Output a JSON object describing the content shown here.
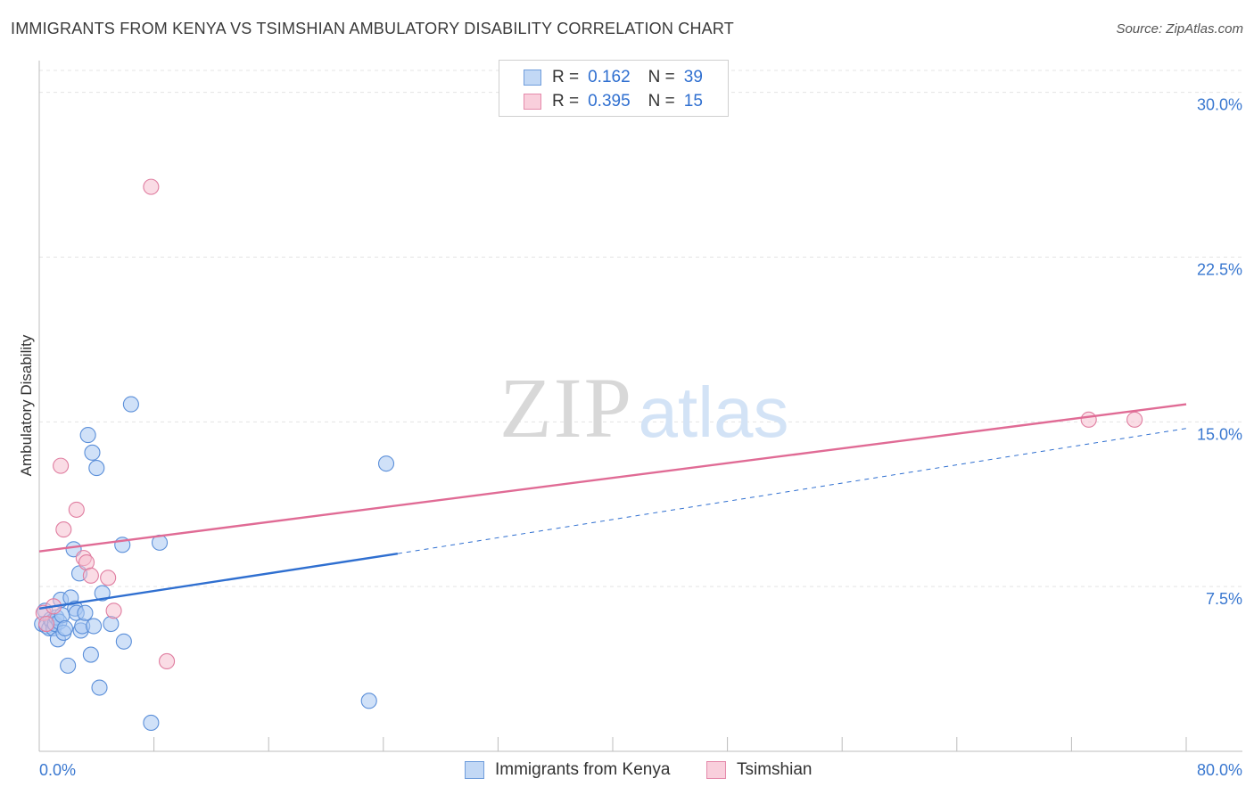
{
  "title": "IMMIGRANTS FROM KENYA VS TSIMSHIAN AMBULATORY DISABILITY CORRELATION CHART",
  "source": "Source: ZipAtlas.com",
  "watermark": {
    "zip": "ZIP",
    "atlas": "atlas"
  },
  "legend": {
    "r_label": "R =",
    "n_label": "N =",
    "rows": [
      {
        "r": "0.162",
        "n": "39",
        "color": "#a9c9f2",
        "border": "#5b8fd9"
      },
      {
        "r": "0.395",
        "n": "15",
        "color": "#f6bfd0",
        "border": "#e07da0"
      }
    ]
  },
  "chart_data": {
    "type": "scatter",
    "title": "IMMIGRANTS FROM KENYA VS TSIMSHIAN AMBULATORY DISABILITY CORRELATION CHART",
    "xlabel": "",
    "ylabel": "Ambulatory Disability",
    "xlim": [
      0,
      80
    ],
    "ylim": [
      0,
      31
    ],
    "x_tick_labels": [
      "0.0%",
      "80.0%"
    ],
    "y_ticks": [
      7.5,
      15.0,
      22.5,
      30.0
    ],
    "y_tick_labels": [
      "7.5%",
      "15.0%",
      "22.5%",
      "30.0%"
    ],
    "grid": true,
    "series": [
      {
        "name": "Immigrants from Kenya",
        "color": "#5b8fd9",
        "fill": "#a9c9f2",
        "line_color": "#2f6fd0",
        "trend": {
          "x0": 0,
          "y0": 6.5,
          "x1": 25,
          "y1": 9.0,
          "dashed_to": 80,
          "dashed_y": 14.7
        },
        "points": [
          [
            0.2,
            5.8
          ],
          [
            0.4,
            6.4
          ],
          [
            0.5,
            5.7
          ],
          [
            0.7,
            5.6
          ],
          [
            0.8,
            6.0
          ],
          [
            0.9,
            5.9
          ],
          [
            1.0,
            5.6
          ],
          [
            1.1,
            5.8
          ],
          [
            1.2,
            6.1
          ],
          [
            1.3,
            5.1
          ],
          [
            1.4,
            5.9
          ],
          [
            1.5,
            6.9
          ],
          [
            1.6,
            6.2
          ],
          [
            1.7,
            5.4
          ],
          [
            1.8,
            5.6
          ],
          [
            2.0,
            3.9
          ],
          [
            2.2,
            7.0
          ],
          [
            2.4,
            9.2
          ],
          [
            2.5,
            6.5
          ],
          [
            2.6,
            6.3
          ],
          [
            2.8,
            8.1
          ],
          [
            2.9,
            5.5
          ],
          [
            3.0,
            5.7
          ],
          [
            3.2,
            6.3
          ],
          [
            3.4,
            14.4
          ],
          [
            3.6,
            4.4
          ],
          [
            3.7,
            13.6
          ],
          [
            3.8,
            5.7
          ],
          [
            4.0,
            12.9
          ],
          [
            4.2,
            2.9
          ],
          [
            4.4,
            7.2
          ],
          [
            5.0,
            5.8
          ],
          [
            5.8,
            9.4
          ],
          [
            5.9,
            5.0
          ],
          [
            6.4,
            15.8
          ],
          [
            7.8,
            1.3
          ],
          [
            8.4,
            9.5
          ],
          [
            24.2,
            13.1
          ],
          [
            23.0,
            2.3
          ]
        ]
      },
      {
        "name": "Tsimshian",
        "color": "#e07da0",
        "fill": "#f6bfd0",
        "line_color": "#e06b95",
        "trend": {
          "x0": 0,
          "y0": 9.1,
          "x1": 80,
          "y1": 15.8
        },
        "points": [
          [
            0.3,
            6.3
          ],
          [
            0.5,
            5.8
          ],
          [
            1.0,
            6.6
          ],
          [
            1.5,
            13.0
          ],
          [
            1.7,
            10.1
          ],
          [
            2.6,
            11.0
          ],
          [
            3.1,
            8.8
          ],
          [
            3.3,
            8.6
          ],
          [
            3.6,
            8.0
          ],
          [
            4.8,
            7.9
          ],
          [
            5.2,
            6.4
          ],
          [
            7.8,
            25.7
          ],
          [
            8.9,
            4.1
          ],
          [
            73.2,
            15.1
          ],
          [
            76.4,
            15.1
          ]
        ]
      }
    ]
  }
}
